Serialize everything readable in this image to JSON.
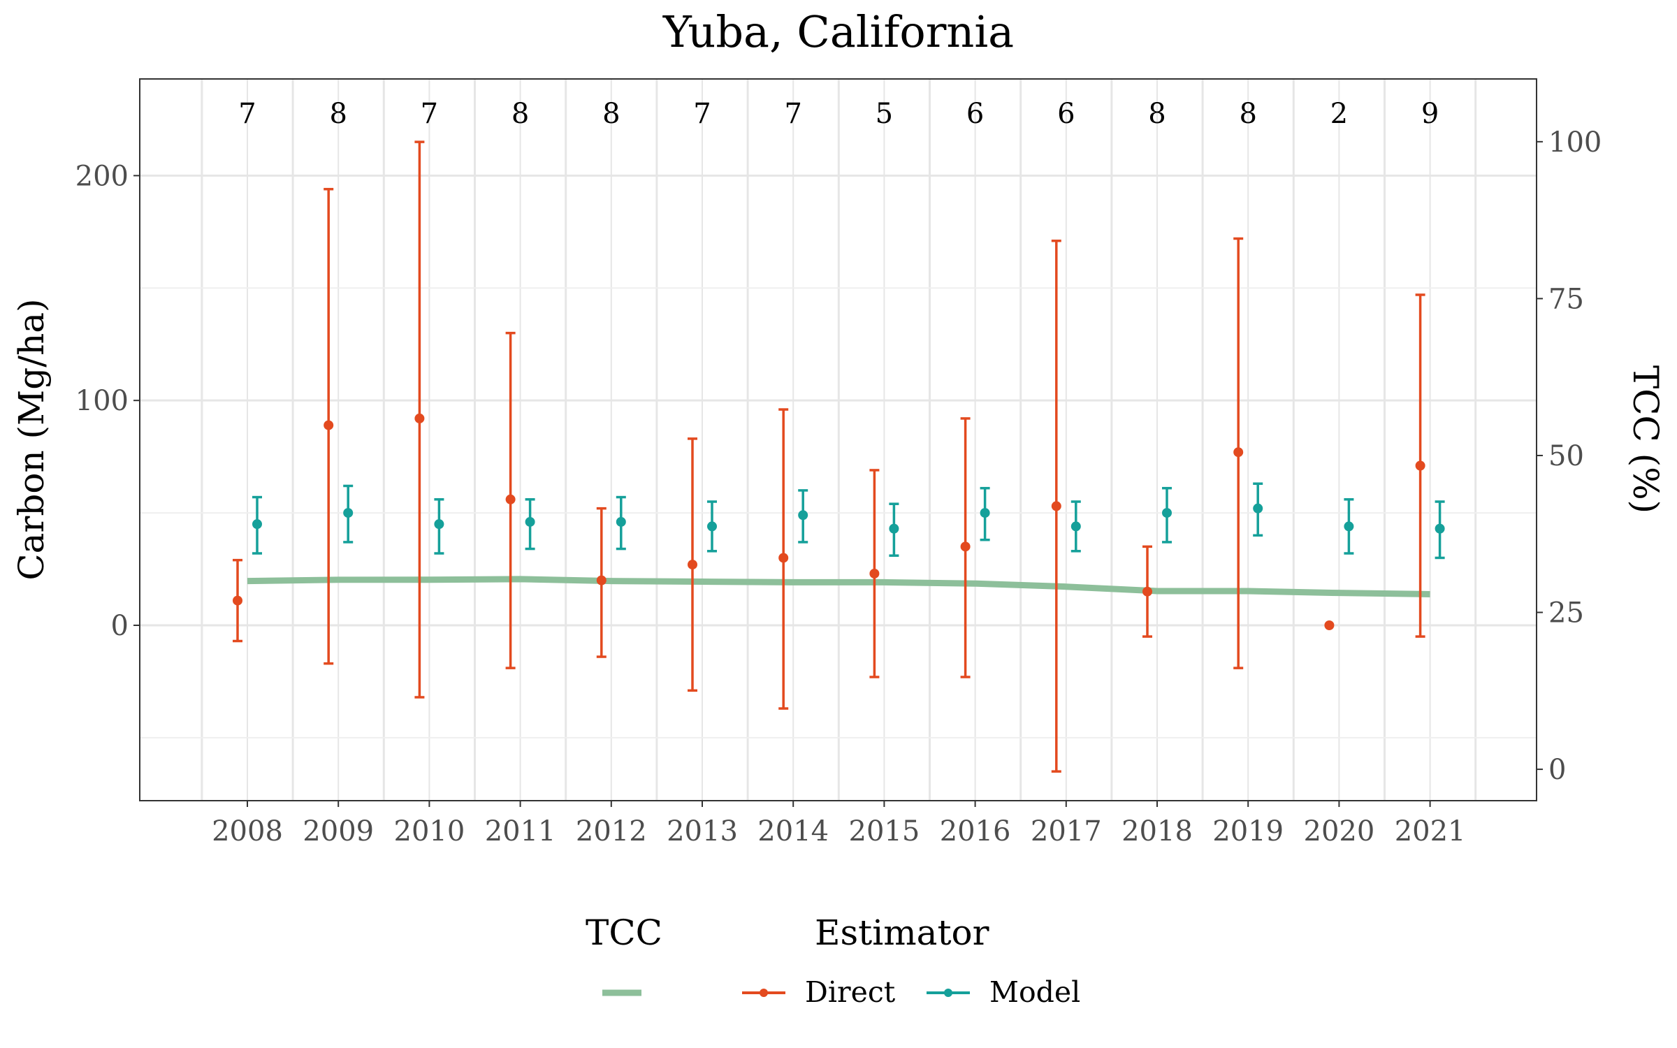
{
  "chart_data": {
    "type": "scatter",
    "title": "Yuba, California",
    "ylabel_left": "Carbon (Mg/ha)",
    "ylabel_right": "TCC (%)",
    "ylim_left": [
      -78,
      243
    ],
    "ylim_right": [
      -5,
      110
    ],
    "left_ticks": [
      0,
      100,
      200
    ],
    "right_ticks": [
      0,
      25,
      50,
      75,
      100
    ],
    "grid": true,
    "legend_position": "bottom",
    "categories": [
      "2008",
      "2009",
      "2010",
      "2011",
      "2012",
      "2013",
      "2014",
      "2015",
      "2016",
      "2017",
      "2018",
      "2019",
      "2020",
      "2021"
    ],
    "counts": [
      "7",
      "8",
      "7",
      "8",
      "8",
      "7",
      "7",
      "5",
      "6",
      "6",
      "8",
      "8",
      "2",
      "9"
    ],
    "legend": {
      "tcc_title": "TCC",
      "estimator_title": "Estimator",
      "direct_label": "Direct",
      "model_label": "Model"
    },
    "series": [
      {
        "name": "Direct",
        "color": "#E34A1F",
        "values": [
          11,
          89,
          92,
          56,
          20,
          27,
          30,
          23,
          35,
          53,
          15,
          77,
          0,
          71
        ],
        "lower": [
          -7,
          -17,
          -32,
          -19,
          -14,
          -29,
          -37,
          -23,
          -23,
          -65,
          -5,
          -19,
          null,
          -5
        ],
        "upper": [
          29,
          194,
          215,
          130,
          52,
          83,
          96,
          69,
          92,
          171,
          35,
          172,
          null,
          147
        ]
      },
      {
        "name": "Model",
        "color": "#15A09A",
        "values": [
          45,
          50,
          45,
          46,
          46,
          44,
          49,
          43,
          50,
          44,
          50,
          52,
          44,
          43
        ],
        "lower": [
          32,
          37,
          32,
          34,
          34,
          33,
          37,
          31,
          38,
          33,
          37,
          40,
          32,
          30
        ],
        "upper": [
          57,
          62,
          56,
          56,
          57,
          55,
          60,
          54,
          61,
          55,
          61,
          63,
          56,
          55
        ]
      }
    ],
    "tcc": {
      "color": "#8DBF9A",
      "values": [
        30.0,
        30.2,
        30.2,
        30.3,
        30.0,
        29.9,
        29.8,
        29.8,
        29.6,
        29.1,
        28.4,
        28.4,
        28.1,
        27.9
      ]
    }
  }
}
